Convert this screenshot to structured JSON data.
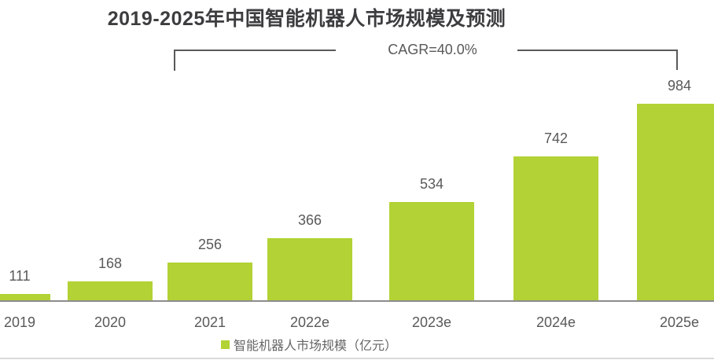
{
  "title": "2019-2025年中国智能机器人市场规模及预测",
  "annotation": {
    "cagr_label": "CAGR=40.0%"
  },
  "legend": {
    "label": "智能机器人市场规模（亿元）",
    "swatch_color": "#b2d235",
    "swatch_icon": "legend-square-swatch"
  },
  "chart_data": {
    "type": "bar",
    "title": "2019-2025年中国智能机器人市场规模及预测",
    "categories": [
      "2019",
      "2020",
      "2021",
      "2022e",
      "2023e",
      "2024e",
      "2025e"
    ],
    "values": [
      111,
      168,
      256,
      366,
      534,
      742,
      984
    ],
    "series_name": "智能机器人市场规模（亿元）",
    "unit": "亿元",
    "value_labels_shown": true,
    "annotations": [
      "CAGR=40.0%"
    ],
    "xlabel": "",
    "ylabel": "",
    "y_axis_shown": false,
    "grid": false,
    "legend_position": "bottom",
    "bar_color": "#b2d235",
    "axis_line_color": "#8c8c8c",
    "text_color": "#595959",
    "title_color": "#3d3d3f"
  }
}
